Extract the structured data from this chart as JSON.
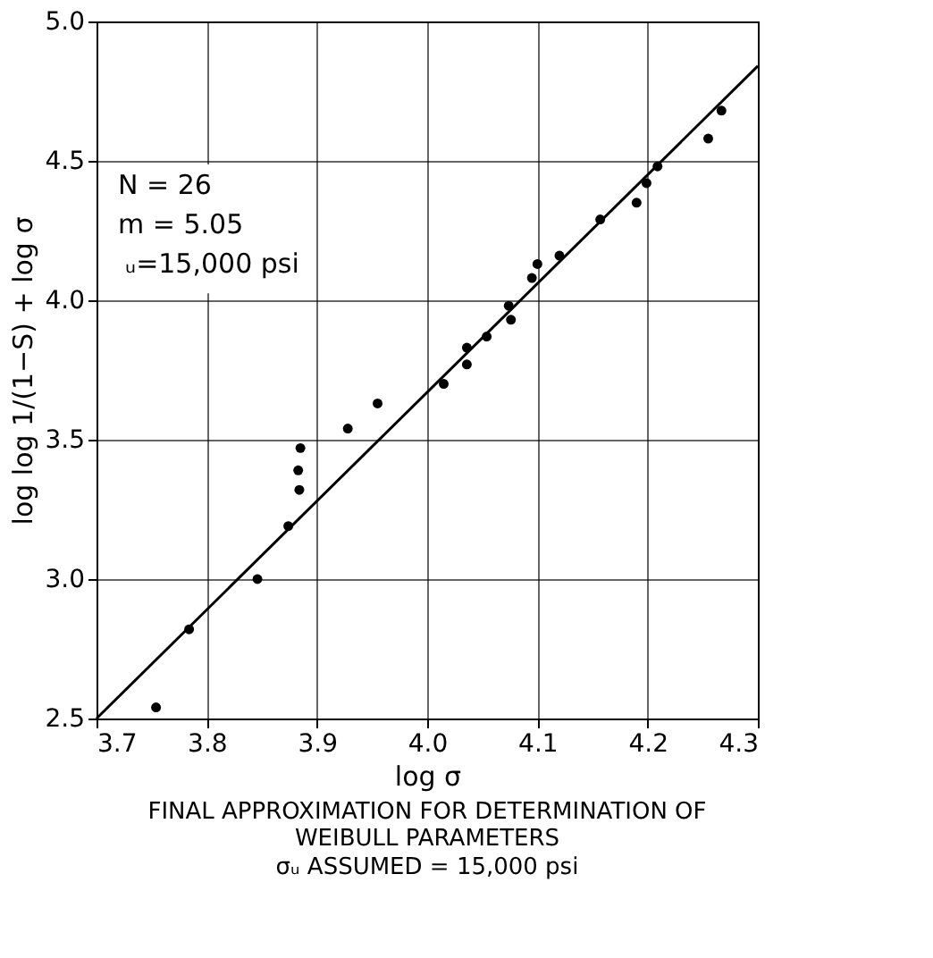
{
  "chart_data": {
    "type": "scatter",
    "title": "FINAL APPROXIMATION FOR DETERMINATION OF WEIBULL PARAMETERS",
    "subtitle": "σᵤ ASSUMED = 15,000 psi",
    "xlabel": "log σ",
    "ylabel": "log log 1/(1−S) + log σ",
    "annotations": [
      "N = 26",
      "m = 5.05",
      "ᵤ=15,000 psi"
    ],
    "xlim": [
      3.7,
      4.3
    ],
    "xticks": [
      3.7,
      3.8,
      3.9,
      {
        "value": 4,
        "label": "4.0"
      },
      4.1,
      4.2,
      4.3
    ],
    "ylim": [
      2.5,
      5.0
    ],
    "yticks": [
      2.5,
      {
        "value": 3,
        "label": "3.0"
      },
      3.5,
      {
        "value": 4,
        "label": "4.0"
      },
      4.5,
      {
        "value": 5,
        "label": "5.0"
      }
    ],
    "grid": true,
    "series": [
      {
        "marker": "circle",
        "color": "#000000",
        "x": [
          3.754,
          3.784,
          3.846,
          3.874,
          3.884,
          3.883,
          3.885,
          3.928,
          3.955,
          4.015,
          4.036,
          4.036,
          4.054,
          4.076,
          4.074,
          4.095,
          4.1,
          4.12,
          4.157,
          4.19,
          4.199,
          4.209,
          4.255,
          4.267
        ],
        "values": [
          2.54,
          2.82,
          3.0,
          3.19,
          3.32,
          3.39,
          3.47,
          3.54,
          3.63,
          3.7,
          3.77,
          3.83,
          3.87,
          3.93,
          3.98,
          4.08,
          4.13,
          4.16,
          4.29,
          4.35,
          4.42,
          4.48,
          4.58,
          4.68
        ]
      },
      {
        "type": "line",
        "marker": "none",
        "color": "#000000",
        "x": [
          3.7,
          4.3
        ],
        "values": [
          2.5,
          4.84
        ]
      }
    ]
  }
}
